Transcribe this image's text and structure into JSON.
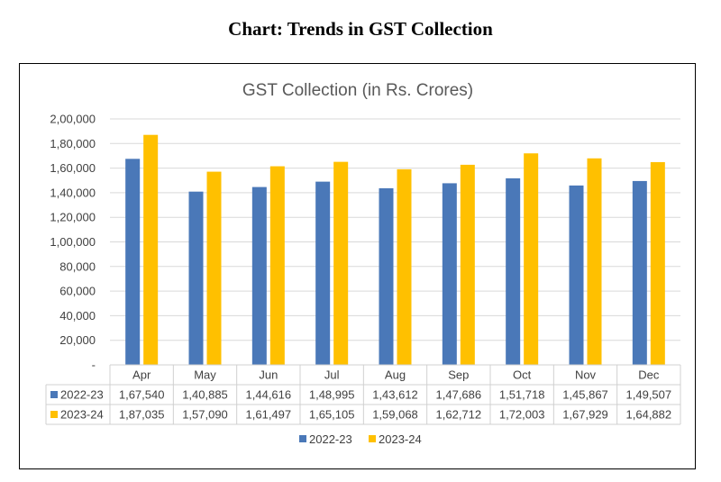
{
  "page": {
    "title": "Chart: Trends in GST Collection"
  },
  "chart_data": {
    "type": "bar",
    "title": "GST Collection (in Rs. Crores)",
    "categories": [
      "Apr",
      "May",
      "Jun",
      "Jul",
      "Aug",
      "Sep",
      "Oct",
      "Nov",
      "Dec"
    ],
    "series": [
      {
        "name": "2022-23",
        "color": "#4a78b8",
        "values": [
          167540,
          140885,
          144616,
          148995,
          143612,
          147686,
          151718,
          145867,
          149507
        ],
        "labels": [
          "1,67,540",
          "1,40,885",
          "1,44,616",
          "1,48,995",
          "1,43,612",
          "1,47,686",
          "1,51,718",
          "1,45,867",
          "1,49,507"
        ]
      },
      {
        "name": "2023-24",
        "color": "#ffc000",
        "values": [
          187035,
          157090,
          161497,
          165105,
          159068,
          162712,
          172003,
          167929,
          164882
        ],
        "labels": [
          "1,87,035",
          "1,57,090",
          "1,61,497",
          "1,65,105",
          "1,59,068",
          "1,62,712",
          "1,72,003",
          "1,67,929",
          "1,64,882"
        ]
      }
    ],
    "ylim": [
      0,
      200000
    ],
    "yticks": [
      0,
      20000,
      40000,
      60000,
      80000,
      100000,
      120000,
      140000,
      160000,
      180000,
      200000
    ],
    "ytick_labels": [
      "-",
      "20,000",
      "40,000",
      "60,000",
      "80,000",
      "1,00,000",
      "1,20,000",
      "1,40,000",
      "1,60,000",
      "1,80,000",
      "2,00,000"
    ],
    "grid": true,
    "data_table": true,
    "legend_position": "bottom"
  }
}
